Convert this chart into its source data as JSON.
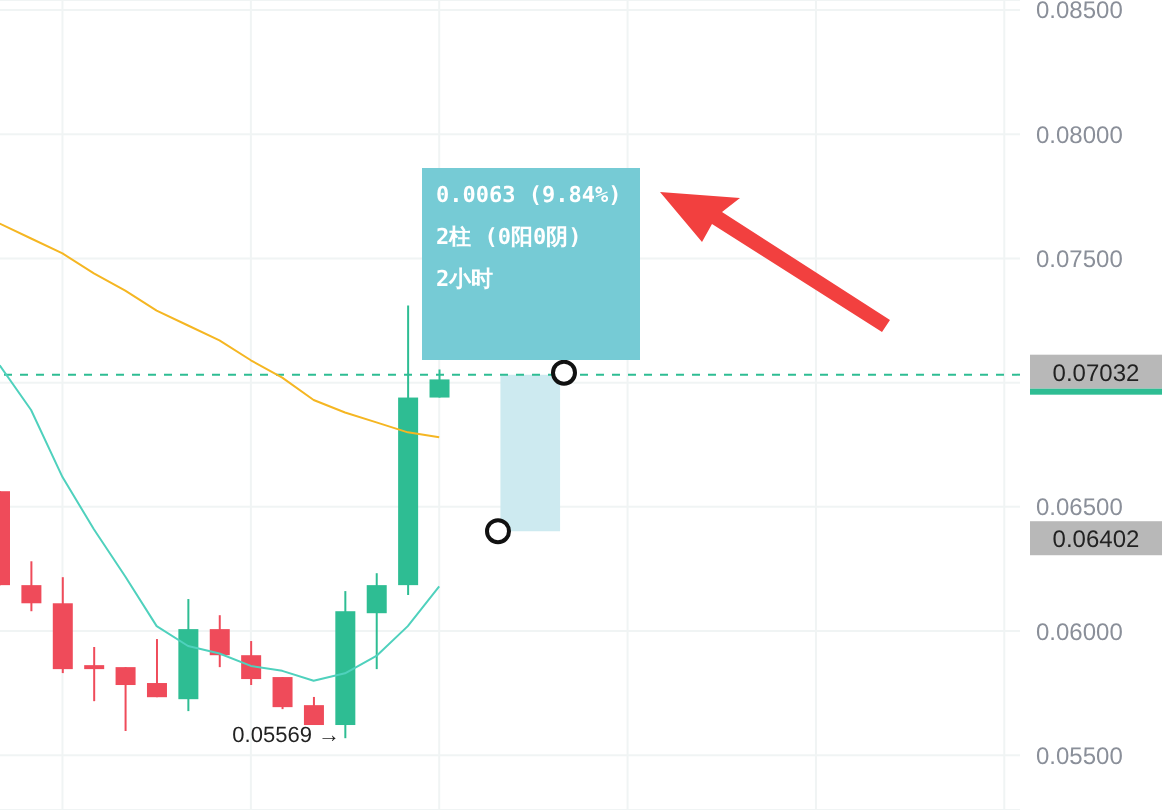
{
  "chart_data": {
    "type": "candlestick",
    "categories": [
      null,
      null,
      null,
      null,
      null,
      null,
      null,
      null,
      null,
      null,
      null,
      null,
      null,
      null,
      null,
      null,
      null,
      null,
      null,
      null,
      null,
      null,
      null,
      null,
      null,
      null,
      null,
      null,
      null,
      null,
      null,
      null,
      null
    ],
    "ohlc": [
      [
        0.06563,
        0.06563,
        0.06185,
        0.06185
      ],
      [
        0.06185,
        0.06281,
        0.0608,
        0.06112
      ],
      [
        0.06112,
        0.06217,
        0.05831,
        0.05847
      ],
      [
        0.05863,
        0.05936,
        0.05718,
        0.05847
      ],
      [
        0.05855,
        0.05855,
        0.05598,
        0.05783
      ],
      [
        0.05791,
        0.05968,
        0.05734,
        0.05734
      ],
      [
        0.05726,
        0.06129,
        0.05678,
        0.06008
      ],
      [
        0.06008,
        0.06064,
        0.05855,
        0.05903
      ],
      [
        0.05903,
        0.0596,
        0.05783,
        0.05807
      ],
      [
        0.05815,
        0.05815,
        0.05686,
        0.05694
      ],
      [
        0.05702,
        0.05735,
        0.05622,
        0.05622
      ],
      [
        0.05622,
        0.06161,
        0.05569,
        0.0608
      ],
      [
        0.06072,
        0.06233,
        0.05847,
        0.06185
      ],
      [
        0.06185,
        0.0731,
        0.06145,
        0.0694
      ],
      [
        0.0694,
        0.07053,
        0.0694,
        0.07013
      ],
      null,
      null,
      null,
      null,
      null,
      null,
      null,
      null,
      null,
      null,
      null,
      null,
      null,
      null,
      null,
      null,
      null,
      null
    ],
    "colors": [
      "#ef4b5a",
      "#ef4b5a",
      "#ef4b5a",
      "#ef4b5a",
      "#ef4b5a",
      "#ef4b5a",
      "#2ebd93",
      "#ef4b5a",
      "#ef4b5a",
      "#ef4b5a",
      "#ef4b5a",
      "#2ebd93",
      "#2ebd93",
      "#2ebd93",
      "#2ebd93",
      null,
      null,
      null,
      null,
      null,
      null,
      null,
      null,
      null,
      null,
      null,
      null,
      null,
      null,
      null,
      null,
      null,
      null
    ],
    "series": [
      {
        "type": "line",
        "color": "#4fd1bd",
        "values": [
          0.0707,
          0.0689,
          0.0662,
          0.0641,
          0.0622,
          0.0602,
          0.0594,
          0.0591,
          0.0586,
          0.0584,
          0.058,
          0.0583,
          0.059,
          0.0602,
          0.0618,
          null,
          null,
          null,
          null,
          null,
          null,
          null,
          null,
          null,
          null,
          null,
          null,
          null,
          null,
          null,
          null,
          null,
          null
        ]
      },
      {
        "type": "line",
        "color": "#f5b622",
        "values": [
          0.0764,
          0.0758,
          0.0752,
          0.0744,
          0.0737,
          0.0729,
          0.0723,
          0.0717,
          0.0709,
          0.0702,
          0.0693,
          0.0688,
          0.0684,
          0.068,
          0.0678,
          null,
          null,
          null,
          null,
          null,
          null,
          null,
          null,
          null,
          null,
          null,
          null,
          null,
          null,
          null,
          null,
          null,
          null
        ]
      }
    ],
    "ylim": [
      0.0528,
      0.0854
    ],
    "yticks": [
      {
        "value": 0.055,
        "label": "0.05500"
      },
      {
        "value": 0.06,
        "label": "0.06000"
      },
      {
        "value": 0.065,
        "label": "0.06500"
      },
      {
        "value": 0.07,
        "label": null
      },
      {
        "value": 0.075,
        "label": "0.07500"
      },
      {
        "value": 0.08,
        "label": "0.08000"
      },
      {
        "value": 0.085,
        "label": "0.08500"
      }
    ],
    "tick_labels": "y",
    "grid": true,
    "ref_lines": [
      {
        "axis": "y",
        "value": 0.07032,
        "label": "0.07032",
        "color": "#2ebd93",
        "line_style": "dashed"
      }
    ],
    "bands": [
      {
        "axis": "y",
        "from": 0.06402,
        "to": 0.07032,
        "color": "#cdeaf0"
      }
    ],
    "annotations": [
      "0.0063 (9.84%)",
      "2柱 (0阳0阴)",
      "2小时",
      "0.06402",
      "0.05569 →"
    ]
  }
}
